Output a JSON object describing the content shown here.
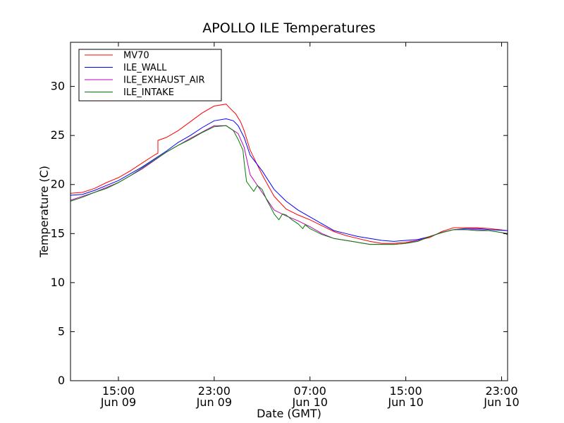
{
  "chart_data": {
    "type": "line",
    "title": "APOLLO ILE Temperatures",
    "xlabel": "Date (GMT)",
    "ylabel": "Temperature (C)",
    "x_unit": "hours since Jun 09 11:00 GMT",
    "xlim": [
      0,
      36.5
    ],
    "ylim": [
      0,
      34.5
    ],
    "yticks": [
      0,
      5,
      10,
      15,
      20,
      25,
      30
    ],
    "xticks": [
      {
        "x": 4,
        "time": "15:00",
        "date": "Jun 09"
      },
      {
        "x": 12,
        "time": "23:00",
        "date": "Jun 09"
      },
      {
        "x": 20,
        "time": "07:00",
        "date": "Jun 10"
      },
      {
        "x": 28,
        "time": "15:00",
        "date": "Jun 10"
      },
      {
        "x": 36,
        "time": "23:00",
        "date": "Jun 10"
      }
    ],
    "legend_position": "top-left",
    "series": [
      {
        "name": "MV70",
        "color": "#ff0000",
        "points": [
          [
            0,
            19.1
          ],
          [
            1,
            19.2
          ],
          [
            2,
            19.6
          ],
          [
            3,
            20.2
          ],
          [
            4,
            20.7
          ],
          [
            5,
            21.4
          ],
          [
            6,
            22.2
          ],
          [
            7,
            23.0
          ],
          [
            7.3,
            23.2
          ],
          [
            7.3,
            24.5
          ],
          [
            8,
            24.8
          ],
          [
            9,
            25.5
          ],
          [
            10,
            26.4
          ],
          [
            11,
            27.3
          ],
          [
            12,
            28.0
          ],
          [
            13,
            28.2
          ],
          [
            13.3,
            27.8
          ],
          [
            13.8,
            27.2
          ],
          [
            14.2,
            26.4
          ],
          [
            14.5,
            25.5
          ],
          [
            15,
            23.5
          ],
          [
            16,
            21.0
          ],
          [
            17,
            18.8
          ],
          [
            18,
            17.5
          ],
          [
            19,
            16.9
          ],
          [
            20,
            16.4
          ],
          [
            21,
            15.8
          ],
          [
            22,
            15.2
          ],
          [
            23,
            14.8
          ],
          [
            24,
            14.5
          ],
          [
            25,
            14.2
          ],
          [
            26,
            14.0
          ],
          [
            27,
            14.0
          ],
          [
            28,
            14.1
          ],
          [
            29,
            14.3
          ],
          [
            30,
            14.6
          ],
          [
            31,
            15.2
          ],
          [
            32,
            15.6
          ],
          [
            33,
            15.6
          ],
          [
            34,
            15.6
          ],
          [
            35,
            15.5
          ],
          [
            36.5,
            15.3
          ]
        ]
      },
      {
        "name": "ILE_WALL",
        "color": "#0000ff",
        "points": [
          [
            0,
            18.9
          ],
          [
            1,
            19.0
          ],
          [
            2,
            19.4
          ],
          [
            3,
            19.9
          ],
          [
            4,
            20.4
          ],
          [
            5,
            21.1
          ],
          [
            6,
            21.8
          ],
          [
            7,
            22.6
          ],
          [
            8,
            23.4
          ],
          [
            9,
            24.3
          ],
          [
            10,
            25.0
          ],
          [
            11,
            25.8
          ],
          [
            12,
            26.5
          ],
          [
            13,
            26.7
          ],
          [
            13.6,
            26.5
          ],
          [
            14,
            26.0
          ],
          [
            14.5,
            24.8
          ],
          [
            15,
            23.0
          ],
          [
            16,
            21.4
          ],
          [
            17,
            19.5
          ],
          [
            18,
            18.3
          ],
          [
            19,
            17.4
          ],
          [
            20,
            16.7
          ],
          [
            21,
            16.0
          ],
          [
            22,
            15.3
          ],
          [
            23,
            15.0
          ],
          [
            24,
            14.7
          ],
          [
            25,
            14.5
          ],
          [
            26,
            14.3
          ],
          [
            27,
            14.2
          ],
          [
            28,
            14.3
          ],
          [
            29,
            14.4
          ],
          [
            30,
            14.7
          ],
          [
            31,
            15.1
          ],
          [
            32,
            15.4
          ],
          [
            33,
            15.5
          ],
          [
            34,
            15.5
          ],
          [
            35,
            15.4
          ],
          [
            36.5,
            15.3
          ]
        ]
      },
      {
        "name": "ILE_EXHAUST_AIR",
        "color": "#bf00bf",
        "points": [
          [
            0,
            18.4
          ],
          [
            2,
            19.2
          ],
          [
            4,
            20.2
          ],
          [
            6,
            21.6
          ],
          [
            8,
            23.3
          ],
          [
            10,
            24.7
          ],
          [
            12,
            26.0
          ],
          [
            13,
            26.0
          ],
          [
            14,
            25.2
          ],
          [
            14.5,
            23.8
          ],
          [
            15,
            21.0
          ],
          [
            16,
            19.2
          ],
          [
            17,
            17.4
          ],
          [
            18,
            16.8
          ],
          [
            19,
            16.3
          ],
          [
            20,
            15.7
          ],
          [
            21,
            15.0
          ],
          [
            22,
            14.5
          ],
          [
            23,
            14.3
          ],
          [
            24,
            14.1
          ],
          [
            25,
            13.9
          ],
          [
            26,
            13.9
          ],
          [
            27,
            13.9
          ],
          [
            28,
            14.0
          ],
          [
            29,
            14.3
          ],
          [
            30,
            14.7
          ],
          [
            31,
            15.1
          ],
          [
            32,
            15.4
          ],
          [
            33,
            15.4
          ],
          [
            34,
            15.4
          ],
          [
            35,
            15.3
          ],
          [
            36.5,
            15.0
          ]
        ]
      },
      {
        "name": "ILE_INTAKE",
        "color": "#008000",
        "points": [
          [
            0,
            18.3
          ],
          [
            1,
            18.7
          ],
          [
            2,
            19.2
          ],
          [
            3,
            19.6
          ],
          [
            4,
            20.2
          ],
          [
            5,
            20.9
          ],
          [
            6,
            21.7
          ],
          [
            7,
            22.5
          ],
          [
            8,
            23.3
          ],
          [
            9,
            24.0
          ],
          [
            10,
            24.6
          ],
          [
            11,
            25.3
          ],
          [
            12,
            25.9
          ],
          [
            13,
            26.0
          ],
          [
            13.6,
            25.5
          ],
          [
            14,
            24.6
          ],
          [
            14.4,
            23.5
          ],
          [
            14.5,
            22.3
          ],
          [
            14.7,
            20.3
          ],
          [
            15,
            19.8
          ],
          [
            15.3,
            19.3
          ],
          [
            15.6,
            19.9
          ],
          [
            16,
            19.5
          ],
          [
            16.4,
            18.4
          ],
          [
            16.8,
            17.5
          ],
          [
            17,
            17.0
          ],
          [
            17.4,
            16.4
          ],
          [
            17.7,
            17.0
          ],
          [
            18,
            16.9
          ],
          [
            18.5,
            16.4
          ],
          [
            19,
            16.0
          ],
          [
            19.4,
            15.5
          ],
          [
            19.6,
            15.9
          ],
          [
            20,
            15.5
          ],
          [
            21,
            14.9
          ],
          [
            22,
            14.5
          ],
          [
            23,
            14.3
          ],
          [
            24,
            14.1
          ],
          [
            25,
            13.9
          ],
          [
            26,
            13.9
          ],
          [
            27,
            13.9
          ],
          [
            28,
            14.0
          ],
          [
            29,
            14.2
          ],
          [
            30,
            14.7
          ],
          [
            31,
            15.1
          ],
          [
            32,
            15.4
          ],
          [
            33,
            15.4
          ],
          [
            34,
            15.3
          ],
          [
            35,
            15.3
          ],
          [
            36,
            15.1
          ],
          [
            36.5,
            14.9
          ]
        ]
      }
    ]
  }
}
